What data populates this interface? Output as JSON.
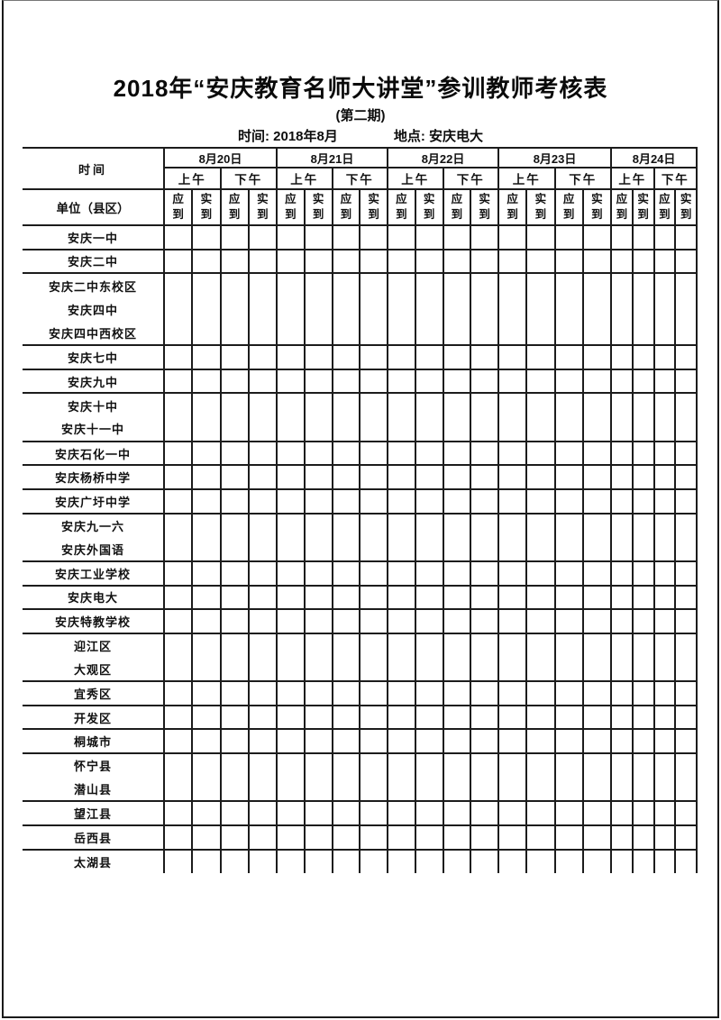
{
  "page": {
    "title": "2018年“安庆教育名师大讲堂”参训教师考核表",
    "subtitle": "(第二期)",
    "info": {
      "time": "时间: 2018年8月",
      "location": "地点: 安庆电大"
    }
  },
  "table": {
    "corner": {
      "top": "时间",
      "bottom": "单位（县区）"
    },
    "dates": [
      "8月20日",
      "8月21日",
      "8月22日",
      "8月23日",
      "8月24日"
    ],
    "sessions": [
      "上午",
      "下午"
    ],
    "attendance": [
      "应到",
      "实到"
    ],
    "rows": [
      {
        "name": "安庆一中",
        "sep": true
      },
      {
        "name": "安庆二中",
        "sep": true
      },
      {
        "name": "安庆二中东校区",
        "sep": false
      },
      {
        "name": "安庆四中",
        "sep": false
      },
      {
        "name": "安庆四中西校区",
        "sep": true
      },
      {
        "name": "安庆七中",
        "sep": true
      },
      {
        "name": "安庆九中",
        "sep": true
      },
      {
        "name": "安庆十中",
        "sep": false
      },
      {
        "name": "安庆十一中",
        "sep": true
      },
      {
        "name": "安庆石化一中",
        "sep": true
      },
      {
        "name": "安庆杨桥中学",
        "sep": true
      },
      {
        "name": "安庆广圩中学",
        "sep": true
      },
      {
        "name": "安庆九一六",
        "sep": false
      },
      {
        "name": "安庆外国语",
        "sep": true
      },
      {
        "name": "安庆工业学校",
        "sep": true
      },
      {
        "name": "安庆电大",
        "sep": true
      },
      {
        "name": "安庆特教学校",
        "sep": true
      },
      {
        "name": "迎江区",
        "sep": false
      },
      {
        "name": "大观区",
        "sep": true
      },
      {
        "name": "宜秀区",
        "sep": true
      },
      {
        "name": "开发区",
        "sep": true
      },
      {
        "name": "桐城市",
        "sep": true
      },
      {
        "name": "怀宁县",
        "sep": false
      },
      {
        "name": "潜山县",
        "sep": true
      },
      {
        "name": "望江县",
        "sep": true
      },
      {
        "name": "岳西县",
        "sep": true
      },
      {
        "name": "太湖县",
        "sep": false
      }
    ]
  }
}
